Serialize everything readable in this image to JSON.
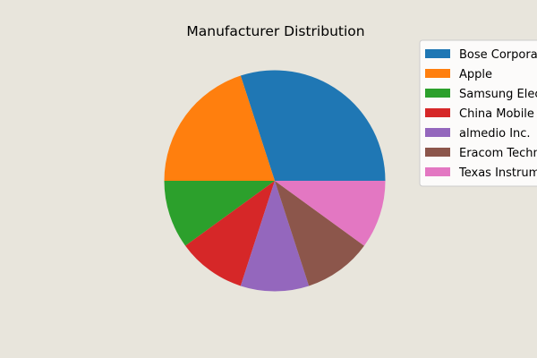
{
  "chart_data": {
    "type": "pie",
    "title": "Manufacturer Distribution",
    "categories": [
      "Bose Corporation",
      "Apple",
      "Samsung Electronics",
      "China Mobile",
      "almedio Inc.",
      "Eracom Technologies",
      "Texas Instruments"
    ],
    "values": [
      3,
      2,
      1,
      1,
      1,
      1,
      1
    ],
    "colors": [
      "#1f77b4",
      "#ff7f0e",
      "#2ca02c",
      "#d62728",
      "#9467bd",
      "#8c564b",
      "#e377c2"
    ],
    "start_angle_deg": 0,
    "direction": "counterclockwise",
    "legend_position": "upper-right"
  },
  "style": {
    "background": "#e8e5dc",
    "legend_background": "#ffffff",
    "legend_border": "#cccccc"
  }
}
